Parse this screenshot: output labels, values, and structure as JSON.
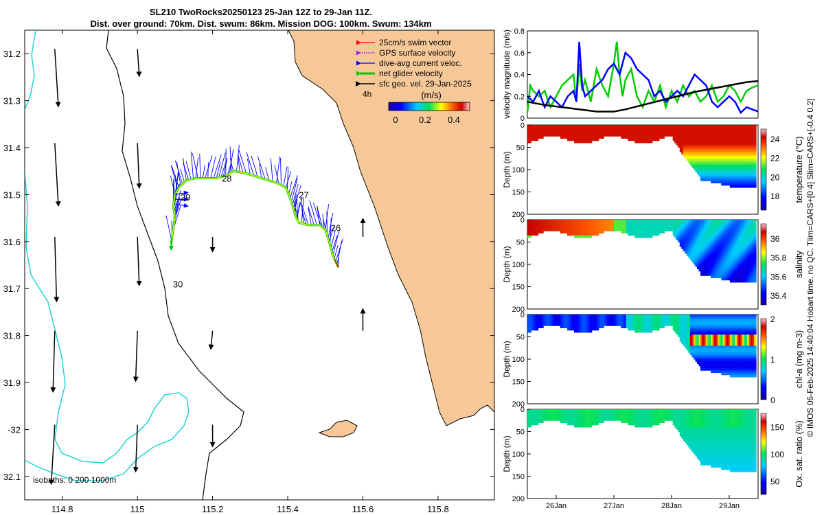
{
  "title_line1": "SL210 TwoRocks20250123 25-Jan 12Z to 29-Jan 11Z.",
  "title_line2": "Dist. over ground: 70km. Dist. swum: 86km. Mission DOG: 100km. Swum: 134km",
  "credit": "© IMOS 06-Feb-2025 14:40:04 Hobart time. no QC. Tlim=CARS+[0 4] Slim=CARS+[-0.4 0.2]",
  "colors": {
    "land": "#f6c898",
    "isobath": "#22d3d3",
    "track": "#ffff00",
    "swim": "#ff0000",
    "gps": "#a020f0",
    "current": "#0000ff",
    "net": "#00cc00",
    "geo": "#000000",
    "mag": "#000000"
  },
  "chart_data": [
    {
      "type": "map",
      "name": "track-map",
      "xlabel": "",
      "ylabel": "",
      "xlim": [
        114.7,
        115.95
      ],
      "ylim": [
        -32.15,
        -31.15
      ],
      "xticks": [
        114.8,
        115,
        115.2,
        115.4,
        115.6,
        115.8
      ],
      "xticklabels": [
        "114.8",
        "115",
        "115.2",
        "115.4",
        "115.6",
        "115.8"
      ],
      "yticks": [
        -31.2,
        -31.3,
        -31.4,
        -31.5,
        -31.6,
        -31.7,
        -31.8,
        -31.9,
        -32,
        -32.1
      ],
      "yticklabels": [
        "31.2",
        "31.3",
        "31.4",
        "31.5",
        "31.6",
        "31.7",
        "31.8",
        "31.9",
        "-32",
        "32.1"
      ],
      "legend": [
        "25cm/s swim vector",
        "GPS surface velocity",
        "dive-avg current veloc.",
        "net glider velocity",
        "sfc geo. vel. 29-Jan-2025"
      ],
      "legend_position": "top-right",
      "interval_label": "4h",
      "colorbar": {
        "label": "(m/s)",
        "ticks": [
          "0",
          "0.2",
          "0.4"
        ],
        "range": [
          0,
          0.5
        ]
      },
      "isobaths_label": "isobaths: 0   200  1000m",
      "day_labels": [
        {
          "text": "26",
          "x": 115.5,
          "y": -31.57
        },
        {
          "text": "27",
          "x": 115.415,
          "y": -31.5
        },
        {
          "text": "28",
          "x": 115.21,
          "y": -31.465
        },
        {
          "text": "29",
          "x": 115.1,
          "y": -31.505
        },
        {
          "text": "30",
          "x": 115.08,
          "y": -31.69
        }
      ],
      "track": [
        [
          115.535,
          -31.655
        ],
        [
          115.52,
          -31.63
        ],
        [
          115.51,
          -31.6
        ],
        [
          115.5,
          -31.575
        ],
        [
          115.485,
          -31.565
        ],
        [
          115.455,
          -31.565
        ],
        [
          115.43,
          -31.56
        ],
        [
          115.42,
          -31.545
        ],
        [
          115.41,
          -31.515
        ],
        [
          115.395,
          -31.485
        ],
        [
          115.37,
          -31.475
        ],
        [
          115.33,
          -31.465
        ],
        [
          115.29,
          -31.455
        ],
        [
          115.255,
          -31.45
        ],
        [
          115.235,
          -31.46
        ],
        [
          115.21,
          -31.465
        ],
        [
          115.18,
          -31.465
        ],
        [
          115.155,
          -31.465
        ],
        [
          115.13,
          -31.47
        ],
        [
          115.11,
          -31.485
        ],
        [
          115.1,
          -31.5
        ],
        [
          115.095,
          -31.525
        ],
        [
          115.1,
          -31.545
        ],
        [
          115.095,
          -31.575
        ],
        [
          115.09,
          -31.605
        ]
      ],
      "geo_vectors": [
        {
          "x": 114.78,
          "y": -31.19,
          "u": 0.02,
          "v": -0.32
        },
        {
          "x": 115.0,
          "y": -31.19,
          "u": 0.01,
          "v": -0.15
        },
        {
          "x": 114.78,
          "y": -31.39,
          "u": 0.02,
          "v": -0.35
        },
        {
          "x": 115.0,
          "y": -31.39,
          "u": 0.01,
          "v": -0.25
        },
        {
          "x": 114.78,
          "y": -31.59,
          "u": 0.01,
          "v": -0.36
        },
        {
          "x": 115.0,
          "y": -31.59,
          "u": 0.01,
          "v": -0.27
        },
        {
          "x": 115.2,
          "y": -31.59,
          "u": 0.0,
          "v": -0.08
        },
        {
          "x": 115.6,
          "y": -31.59,
          "u": 0.0,
          "v": 0.1
        },
        {
          "x": 114.78,
          "y": -31.79,
          "u": -0.01,
          "v": -0.34
        },
        {
          "x": 115.0,
          "y": -31.79,
          "u": -0.01,
          "v": -0.28
        },
        {
          "x": 115.2,
          "y": -31.79,
          "u": -0.01,
          "v": -0.1
        },
        {
          "x": 115.6,
          "y": -31.79,
          "u": 0.0,
          "v": 0.12
        },
        {
          "x": 114.78,
          "y": -31.99,
          "u": -0.02,
          "v": -0.33
        },
        {
          "x": 115.0,
          "y": -31.99,
          "u": -0.01,
          "v": -0.26
        },
        {
          "x": 115.2,
          "y": -31.99,
          "u": 0.0,
          "v": -0.12
        }
      ]
    },
    {
      "type": "line",
      "name": "velocity-magnitude",
      "ylabel": "velocity magnitude (m/s)",
      "xlim": [
        25.5,
        29.5
      ],
      "ylim": [
        0,
        0.8
      ],
      "yticks": [
        0,
        0.2,
        0.4,
        0.6,
        0.8
      ],
      "yticklabels": [
        "0",
        "0.2",
        "0.4",
        "0.6",
        "0.8"
      ],
      "series": [
        {
          "name": "net glider velocity",
          "color": "#00cc00",
          "x": [
            25.5,
            25.55,
            25.6,
            25.7,
            25.8,
            25.9,
            26.0,
            26.1,
            26.2,
            26.3,
            26.35,
            26.4,
            26.45,
            26.5,
            26.6,
            26.7,
            26.8,
            26.9,
            27.0,
            27.05,
            27.1,
            27.15,
            27.2,
            27.3,
            27.4,
            27.5,
            27.6,
            27.7,
            27.8,
            27.9,
            28.0,
            28.1,
            28.2,
            28.3,
            28.4,
            28.5,
            28.6,
            28.7,
            28.8,
            28.9,
            29.0,
            29.1,
            29.2,
            29.3,
            29.4,
            29.5
          ],
          "y": [
            0.05,
            0.3,
            0.25,
            0.2,
            0.25,
            0.1,
            0.2,
            0.3,
            0.35,
            0.4,
            0.15,
            0.5,
            0.25,
            0.35,
            0.15,
            0.45,
            0.3,
            0.2,
            0.5,
            0.7,
            0.4,
            0.2,
            0.35,
            0.45,
            0.2,
            0.1,
            0.25,
            0.15,
            0.3,
            0.1,
            0.25,
            0.15,
            0.3,
            0.2,
            0.25,
            0.15,
            0.2,
            0.3,
            0.15,
            0.2,
            0.3,
            0.25,
            0.15,
            0.25,
            0.28,
            0.3
          ]
        },
        {
          "name": "dive-avg current veloc.",
          "color": "#0000ff",
          "x": [
            25.5,
            25.6,
            25.7,
            25.8,
            25.9,
            26.0,
            26.1,
            26.2,
            26.3,
            26.35,
            26.4,
            26.45,
            26.5,
            26.6,
            26.7,
            26.8,
            26.9,
            27.0,
            27.1,
            27.2,
            27.3,
            27.4,
            27.5,
            27.6,
            27.7,
            27.8,
            27.9,
            28.0,
            28.1,
            28.2,
            28.3,
            28.4,
            28.5,
            28.6,
            28.7,
            28.8,
            28.9,
            29.0,
            29.1,
            29.2,
            29.3,
            29.4,
            29.5
          ],
          "y": [
            0.2,
            0.15,
            0.25,
            0.1,
            0.2,
            0.15,
            0.1,
            0.2,
            0.25,
            0.15,
            0.7,
            0.3,
            0.2,
            0.25,
            0.3,
            0.35,
            0.45,
            0.5,
            0.4,
            0.6,
            0.55,
            0.45,
            0.4,
            0.35,
            0.2,
            0.25,
            0.15,
            0.2,
            0.25,
            0.2,
            0.3,
            0.4,
            0.35,
            0.3,
            0.15,
            0.1,
            0.15,
            0.2,
            0.15,
            0.05,
            0.1,
            0.08,
            0.06
          ]
        },
        {
          "name": "sfc geo. vel.",
          "color": "#000000",
          "x": [
            25.5,
            25.8,
            26.1,
            26.4,
            26.7,
            27.0,
            27.2,
            27.5,
            27.8,
            28.1,
            28.4,
            28.7,
            29.0,
            29.3,
            29.5
          ],
          "y": [
            0.15,
            0.12,
            0.1,
            0.08,
            0.06,
            0.06,
            0.08,
            0.12,
            0.16,
            0.2,
            0.24,
            0.27,
            0.3,
            0.33,
            0.34
          ]
        }
      ]
    },
    {
      "type": "heatmap",
      "name": "temperature-section",
      "ylabel": "Depth (m)",
      "yticks": [
        0,
        50,
        100,
        150,
        200
      ],
      "yticklabels": [
        "0",
        "50",
        "100",
        "150",
        "200"
      ],
      "colorbar_label": "temperature (°C)",
      "colorbar_ticks": [
        "18",
        "20",
        "22",
        "24"
      ],
      "colorbar_range": [
        16.5,
        25
      ]
    },
    {
      "type": "heatmap",
      "name": "salinity-section",
      "ylabel": "Depth (m)",
      "yticks": [
        0,
        50,
        100,
        150,
        200
      ],
      "yticklabels": [
        "0",
        "50",
        "100",
        "150",
        "200"
      ],
      "colorbar_label": "salinity",
      "colorbar_ticks": [
        "35.4",
        "35.6",
        "35.8",
        "36"
      ],
      "colorbar_range": [
        35.3,
        36.15
      ]
    },
    {
      "type": "heatmap",
      "name": "chla-section",
      "ylabel": "Depth (m)",
      "yticks": [
        0,
        50,
        100,
        150,
        200
      ],
      "yticklabels": [
        "0",
        "50",
        "100",
        "150",
        "200"
      ],
      "colorbar_label": "chl-a (mg m-3)",
      "colorbar_ticks": [
        "0",
        "1",
        "2"
      ],
      "colorbar_range": [
        0,
        2
      ]
    },
    {
      "type": "heatmap",
      "name": "oxygen-section",
      "ylabel": "Depth (m)",
      "yticks": [
        0,
        50,
        100,
        150,
        200
      ],
      "yticklabels": [
        "0",
        "50",
        "100",
        "150",
        "200"
      ],
      "colorbar_label": "Ox. sat. ratio (%)",
      "colorbar_ticks": [
        "50",
        "100",
        "150"
      ],
      "colorbar_range": [
        25,
        175
      ],
      "xticks": [
        26,
        27,
        28,
        29
      ],
      "xticklabels": [
        "26Jan",
        "27Jan",
        "28Jan",
        "29Jan"
      ]
    }
  ]
}
